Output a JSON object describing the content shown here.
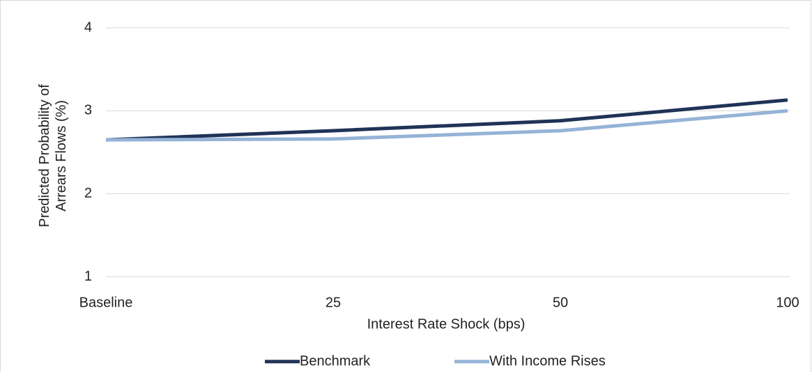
{
  "chart_data": {
    "type": "line",
    "xlabel": "Interest Rate Shock (bps)",
    "ylabel": "Predicted Probability of Arrears Flows (%)",
    "categories": [
      "Baseline",
      "25",
      "50",
      "100"
    ],
    "series": [
      {
        "name": "Benchmark",
        "color": "#1f3356",
        "values": [
          2.65,
          2.76,
          2.88,
          3.13
        ]
      },
      {
        "name": "With Income Rises",
        "color": "#95b3d7",
        "values": [
          2.65,
          2.66,
          2.76,
          3.0
        ]
      }
    ],
    "ylim": [
      1,
      4
    ],
    "yticks": [
      1,
      2,
      3,
      4
    ],
    "grid": true,
    "legend": "bottom"
  }
}
